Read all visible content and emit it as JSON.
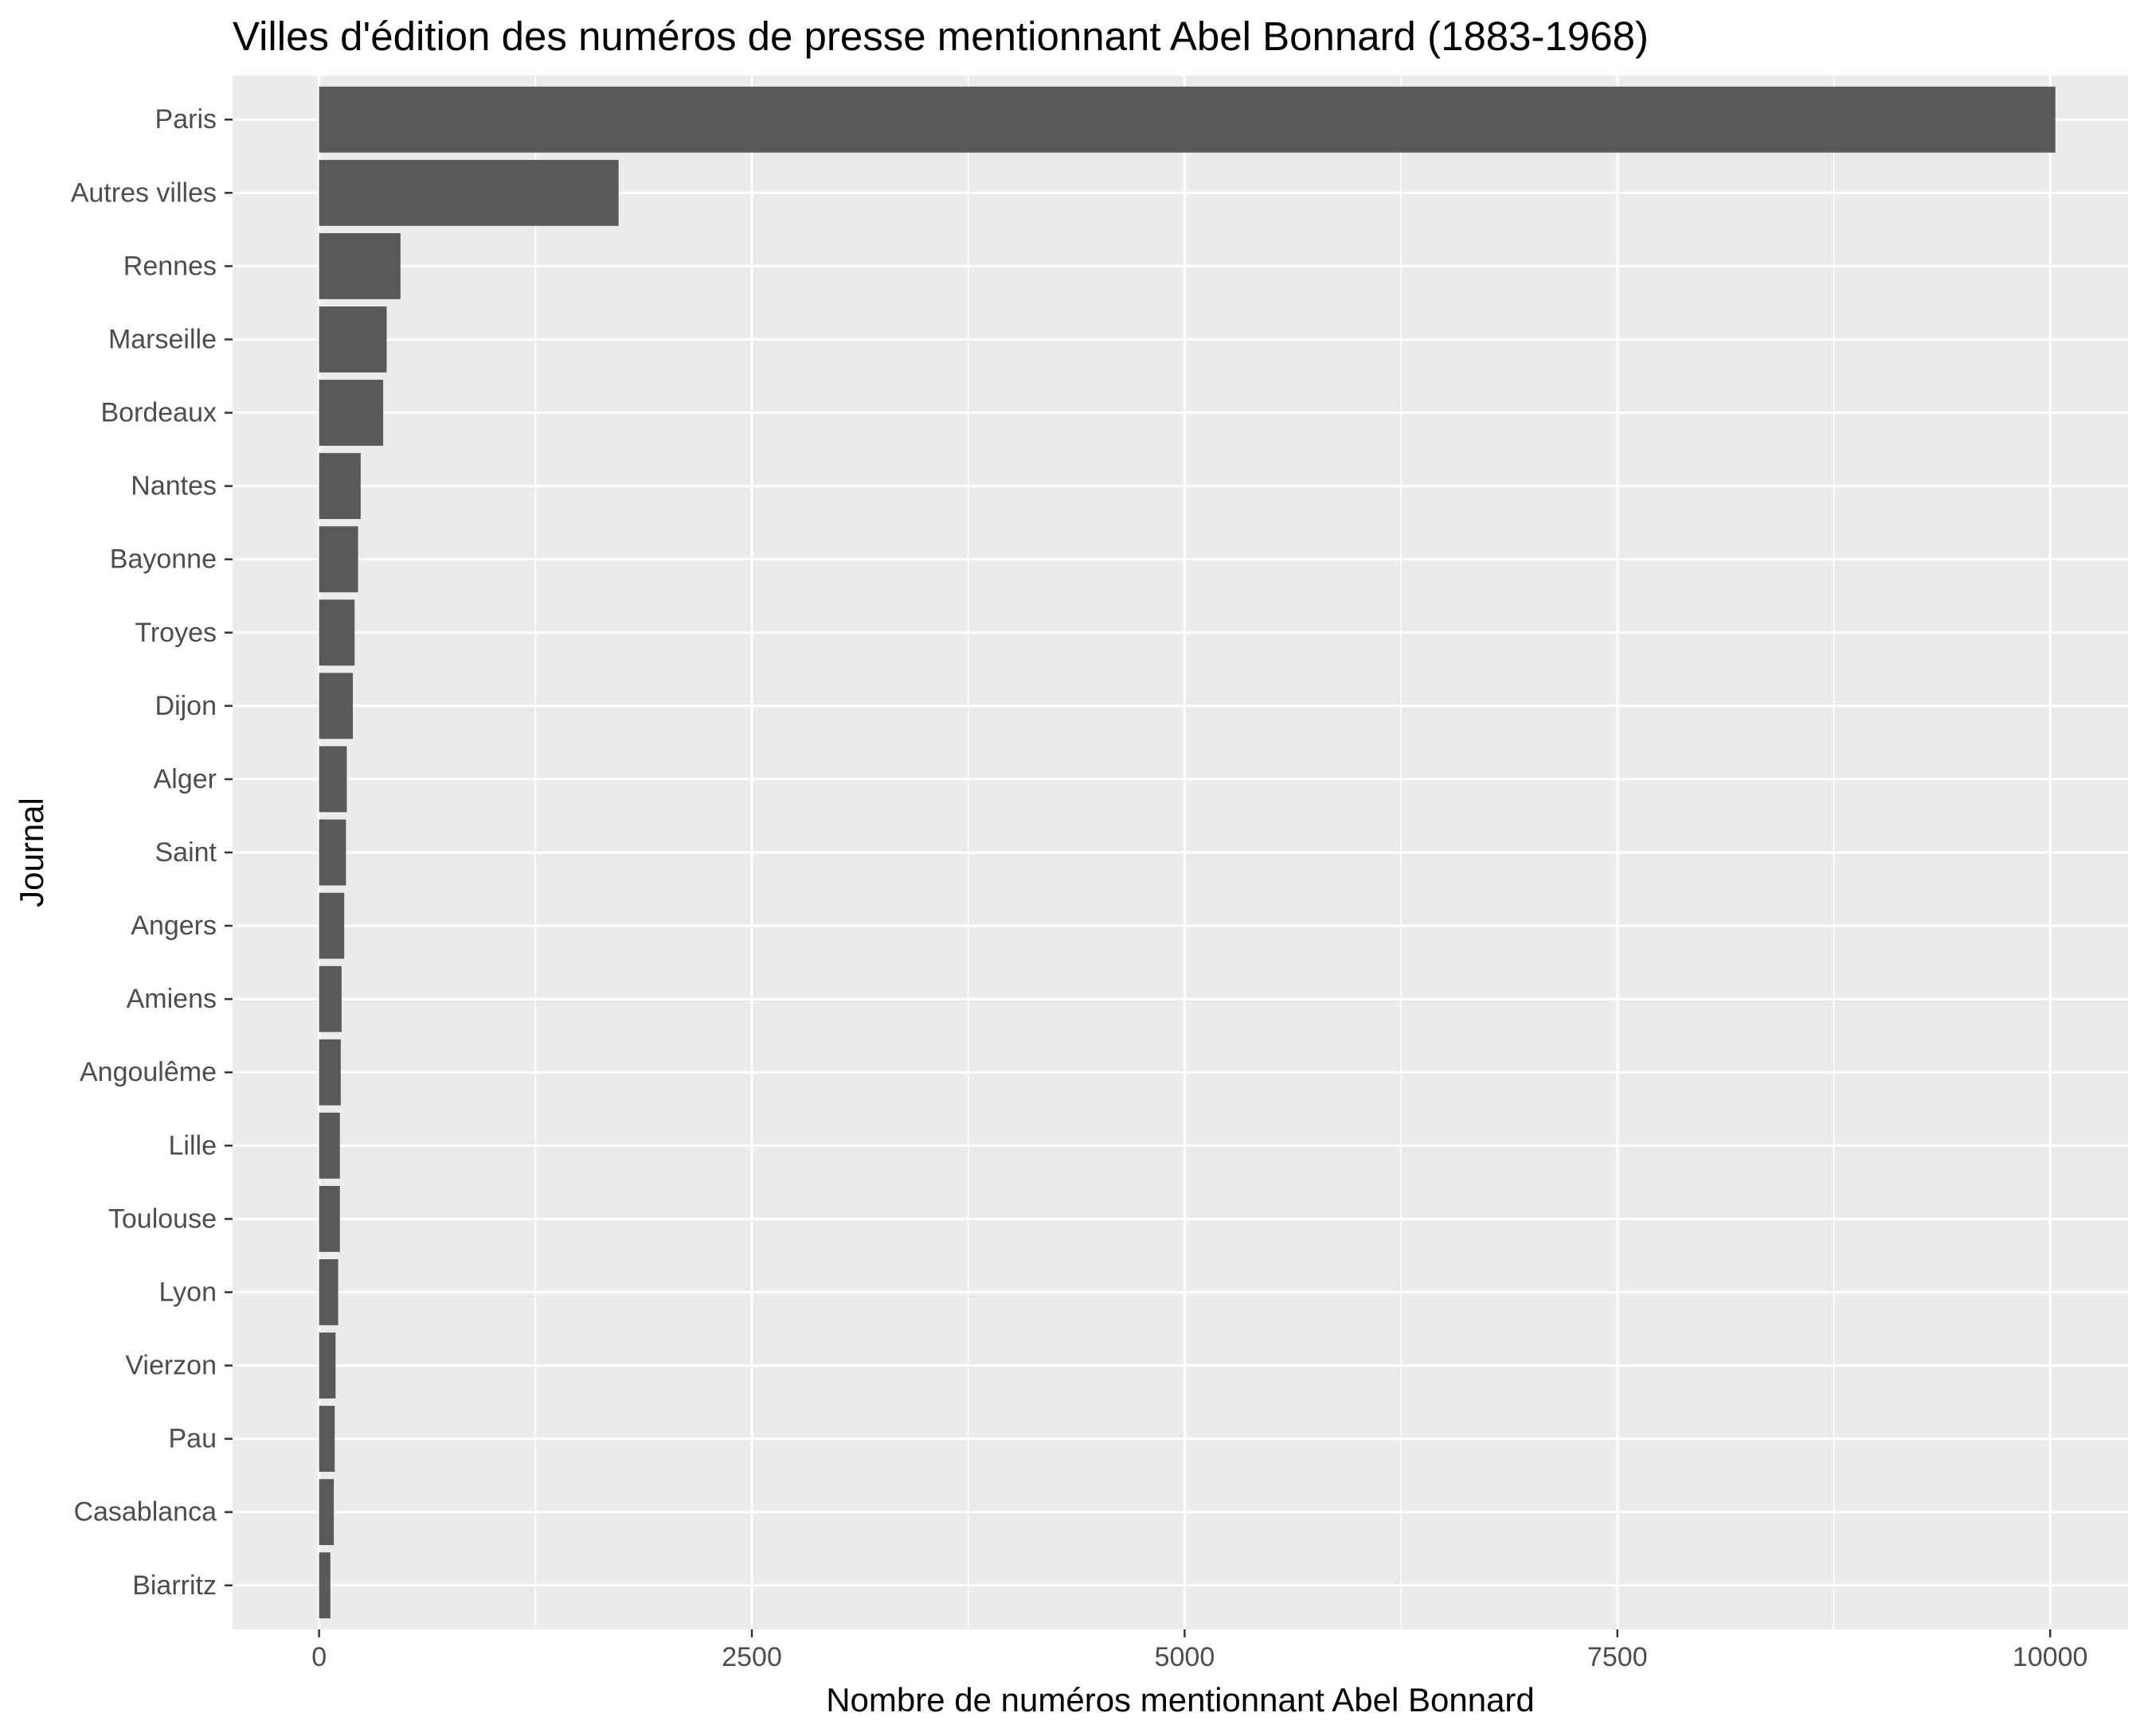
{
  "chart_data": {
    "type": "bar",
    "orientation": "horizontal",
    "title": "Villes d'édition des numéros de presse mentionnant Abel Bonnard (1883-1968)",
    "xlabel": "Nombre de numéros mentionnant Abel Bonnard",
    "ylabel": "Journal",
    "xlim": [
      -500,
      10450
    ],
    "xticks": [
      0,
      2500,
      5000,
      7500,
      10000
    ],
    "xtick_labels": [
      "0",
      "2500",
      "5000",
      "7500",
      "10000"
    ],
    "grid": true,
    "categories": [
      "Paris",
      "Autres villes",
      "Rennes",
      "Marseille",
      "Bordeaux",
      "Nantes",
      "Bayonne",
      "Troyes",
      "Dijon",
      "Alger",
      "Saint",
      "Angers",
      "Amiens",
      "Angoulême",
      "Lille",
      "Toulouse",
      "Lyon",
      "Vierzon",
      "Pau",
      "Casablanca",
      "Biarritz"
    ],
    "values": [
      10030,
      1730,
      470,
      390,
      370,
      240,
      225,
      205,
      195,
      160,
      155,
      145,
      130,
      125,
      120,
      120,
      110,
      95,
      90,
      85,
      65
    ],
    "colors": {
      "bar": "#595959",
      "panel": "#ebebeb",
      "grid_major": "#ffffff",
      "tick": "#333333"
    }
  }
}
